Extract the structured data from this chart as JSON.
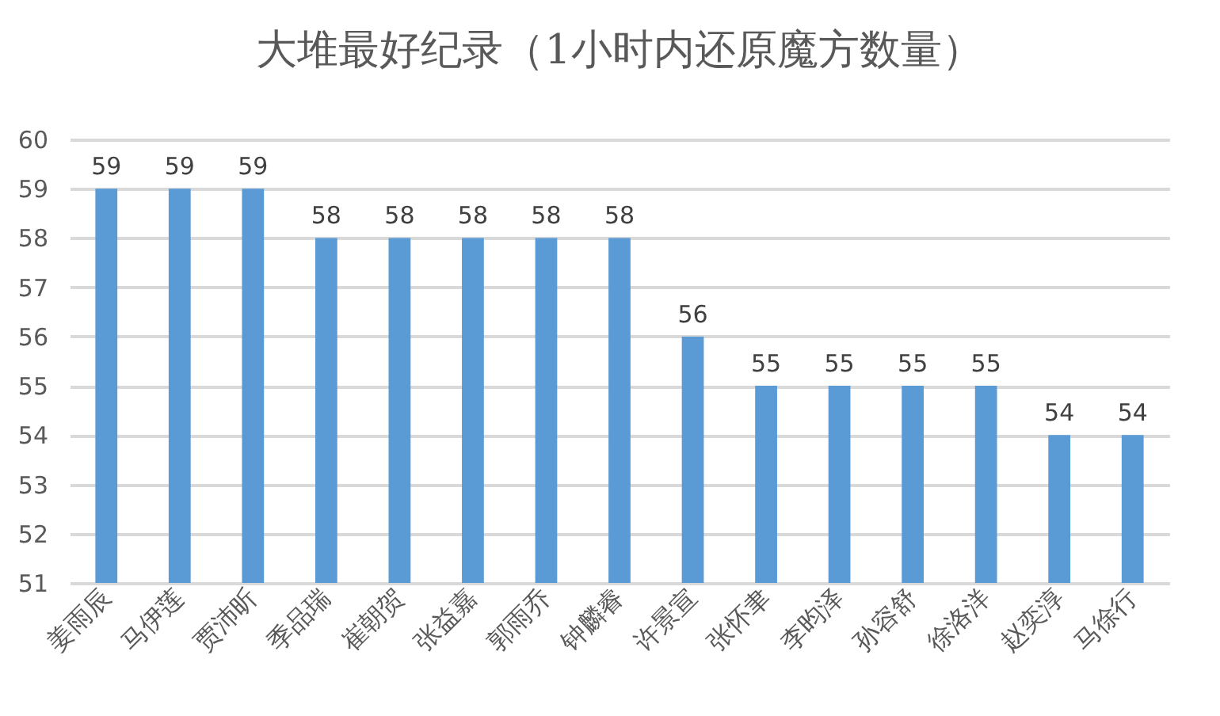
{
  "chart_data": {
    "type": "bar",
    "title": "大堆最好纪录（1小时内还原魔方数量）",
    "categories": [
      "姜雨辰",
      "马伊莲",
      "贾沛昕",
      "季品瑞",
      "崔朝贺",
      "张益嘉",
      "郭雨乔",
      "钟麟睿",
      "许景宣",
      "张怀聿",
      "李昀泽",
      "孙容舒",
      "徐洛洋",
      "赵奕淳",
      "马徐行"
    ],
    "values": [
      59,
      59,
      59,
      58,
      58,
      58,
      58,
      58,
      56,
      55,
      55,
      55,
      55,
      54,
      54
    ],
    "color": "#5b9bd5",
    "ylim": [
      51,
      60
    ],
    "yticks": [
      51,
      52,
      53,
      54,
      55,
      56,
      57,
      58,
      59,
      60
    ],
    "grid": "y",
    "data_labels": true
  }
}
